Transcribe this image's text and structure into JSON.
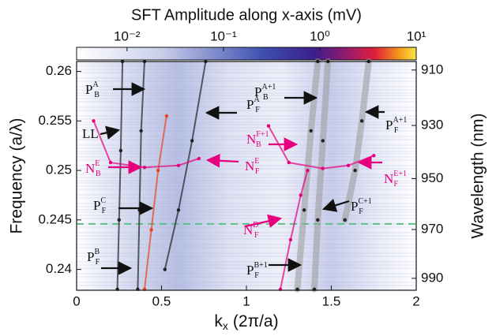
{
  "chart_data": {
    "type": "line",
    "title": "SFT Amplitude along x-axis (mV)",
    "xlabel": {
      "text": "k",
      "sub": "x",
      "unit": "(2π/a)"
    },
    "ylabel": "Frequency (a/λ)",
    "y2label": "Wavelength (nm)",
    "xlim": [
      0,
      2
    ],
    "xticks": [
      0,
      0.5,
      1,
      1.5,
      2
    ],
    "ylim": [
      0.2379,
      0.261
    ],
    "yticks": [
      0.24,
      0.245,
      0.25,
      0.255,
      0.26
    ],
    "y2lim": [
      907,
      995
    ],
    "y2ticks": [
      910,
      930,
      950,
      970,
      990
    ],
    "y2scale": "reciprocal",
    "colorbar": {
      "clim": [
        0.003,
        10
      ],
      "scale": "log",
      "ticks": [
        {
          "value": 0.01,
          "label": "10⁻²"
        },
        {
          "value": 0.1,
          "label": "10⁻¹"
        },
        {
          "value": 1,
          "label": "10⁰"
        },
        {
          "value": 10,
          "label": "10¹"
        }
      ]
    },
    "hline": {
      "value": 0.2446,
      "color": "#5cc08c"
    },
    "series": [
      {
        "color": "#222222",
        "x": [
          0.24,
          0.25,
          0.26,
          0.27
        ],
        "values": [
          0.238,
          0.245,
          0.252,
          0.261
        ]
      },
      {
        "color": "#222222",
        "x": [
          0.36,
          0.37,
          0.38,
          0.4
        ],
        "values": [
          0.238,
          0.246,
          0.254,
          0.261
        ]
      },
      {
        "color": "#e8431a",
        "x": [
          0.4,
          0.44,
          0.48,
          0.53
        ],
        "values": [
          0.238,
          0.244,
          0.25,
          0.2555
        ]
      },
      {
        "color": "#222222",
        "x": [
          0.52,
          0.6,
          0.68,
          0.76
        ],
        "values": [
          0.24,
          0.246,
          0.253,
          0.261
        ]
      },
      {
        "color": "#e6007e",
        "x": [
          0.1,
          0.2,
          0.4,
          0.6,
          0.72
        ],
        "values": [
          0.255,
          0.2508,
          0.2503,
          0.2505,
          0.2512
        ]
      },
      {
        "color": "#999999",
        "x": [
          1.3,
          1.34,
          1.38,
          1.42
        ],
        "values": [
          0.238,
          0.246,
          0.254,
          0.261
        ]
      },
      {
        "color": "#999999",
        "x": [
          1.4,
          1.42,
          1.45,
          1.48
        ],
        "values": [
          0.238,
          0.245,
          0.253,
          0.261
        ]
      },
      {
        "color": "#999999",
        "x": [
          1.58,
          1.64,
          1.68,
          1.72
        ],
        "values": [
          0.245,
          0.25,
          0.255,
          0.261
        ]
      },
      {
        "color": "#e6007e",
        "x": [
          1.13,
          1.25,
          1.45,
          1.6,
          1.75
        ],
        "values": [
          0.2545,
          0.2508,
          0.2502,
          0.2505,
          0.2515
        ]
      },
      {
        "color": "#e6007e",
        "x": [
          1.2,
          1.26,
          1.32,
          1.36
        ],
        "values": [
          0.238,
          0.243,
          0.2475,
          0.25
        ]
      }
    ],
    "annotations": [
      {
        "base": "P",
        "sub": "B",
        "sup": "A",
        "color": "#111111"
      },
      {
        "base": "P",
        "sub": "F",
        "sup": "A",
        "color": "#111111"
      },
      {
        "base": "LL",
        "color": "#111111"
      },
      {
        "base": "N",
        "sub": "B",
        "sup": "E",
        "color": "#e6007e"
      },
      {
        "base": "N",
        "sub": "F",
        "sup": "E",
        "color": "#e6007e"
      },
      {
        "base": "P",
        "sub": "F",
        "sup": "C",
        "color": "#111111"
      },
      {
        "base": "P",
        "sub": "F",
        "sup": "B",
        "color": "#111111"
      },
      {
        "base": "P",
        "sub": "B",
        "sup": "A+1",
        "color": "#111111"
      },
      {
        "base": "P",
        "sub": "F",
        "sup": "A+1",
        "color": "#111111"
      },
      {
        "base": "N",
        "sub": "B",
        "sup": "F+1",
        "color": "#e6007e"
      },
      {
        "base": "N",
        "sub": "F",
        "sup": "E+1",
        "color": "#e6007e"
      },
      {
        "base": "P",
        "sub": "F",
        "sup": "C+1",
        "color": "#111111"
      },
      {
        "base": "N",
        "sub": "F",
        "sup": "D",
        "color": "#e6007e"
      },
      {
        "base": "P",
        "sub": "F",
        "sup": "B+1",
        "color": "#111111"
      }
    ]
  }
}
